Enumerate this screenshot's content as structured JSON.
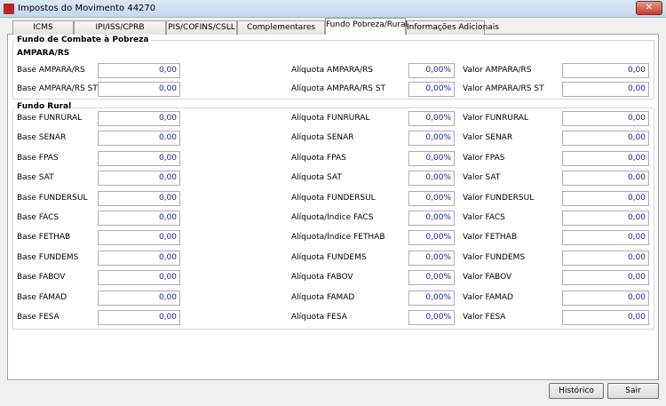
{
  "window": {
    "title": "Impostos do Movimento 44270"
  },
  "tabs": [
    {
      "label": "ICMS",
      "selected": false
    },
    {
      "label": "IPI/ISS/CPRB",
      "selected": false
    },
    {
      "label": "PIS/COFINS/CSLL",
      "selected": false
    },
    {
      "label": "Complementares",
      "selected": false
    },
    {
      "label": "Fundo Pobreza/Rural",
      "selected": true
    },
    {
      "label": "Informações Adicionais",
      "selected": false
    }
  ],
  "groups": [
    {
      "title": "Fundo de Combate à Pobreza",
      "subtitle": "AMPARA/RS",
      "rows": [
        [
          {
            "label": "Base AMPARA/RS",
            "value": "0,00"
          },
          {
            "label": "Alíquota AMPARA/RS",
            "value": "0,00%"
          },
          {
            "label": "Valor AMPARA/RS",
            "value": "0,00"
          }
        ],
        [
          {
            "label": "Base AMPARA/RS ST",
            "value": "0,00"
          },
          {
            "label": "Alíquota AMPARA/RS ST",
            "value": "0,00%"
          },
          {
            "label": "Valor AMPARA/RS ST",
            "value": "0,00"
          }
        ]
      ]
    },
    {
      "title": "Fundo Rural",
      "rows": [
        [
          {
            "label": "Base FUNRURAL",
            "value": "0,00"
          },
          {
            "label": "Alíquota FUNRURAL",
            "value": "0,00%"
          },
          {
            "label": "Valor FUNRURAL",
            "value": "0,00"
          }
        ],
        [
          {
            "label": "Base SENAR",
            "value": "0,00"
          },
          {
            "label": "Alíquota SENAR",
            "value": "0,00%"
          },
          {
            "label": "Valor SENAR",
            "value": "0,00"
          }
        ],
        [
          {
            "label": "Base FPAS",
            "value": "0,00"
          },
          {
            "label": "Alíquota FPAS",
            "value": "0,00%"
          },
          {
            "label": "Valor FPAS",
            "value": "0,00"
          }
        ],
        [
          {
            "label": "Base SAT",
            "value": "0,00"
          },
          {
            "label": "Alíquota SAT",
            "value": "0,00%"
          },
          {
            "label": "Valor SAT",
            "value": "0,00"
          }
        ],
        [
          {
            "label": "Base FUNDERSUL",
            "value": "0,00"
          },
          {
            "label": "Alíquota FUNDERSUL",
            "value": "0,00%"
          },
          {
            "label": "Valor FUNDERSUL",
            "value": "0,00"
          }
        ],
        [
          {
            "label": "Base FACS",
            "value": "0,00"
          },
          {
            "label": "Alíquota/Índice FACS",
            "value": "0,00%"
          },
          {
            "label": "Valor FACS",
            "value": "0,00"
          }
        ],
        [
          {
            "label": "Base FETHAB",
            "value": "0,00"
          },
          {
            "label": "Alíquota/Índice FETHAB",
            "value": "0,00%"
          },
          {
            "label": "Valor FETHAB",
            "value": "0,00"
          }
        ],
        [
          {
            "label": "Base FUNDEMS",
            "value": "0,00"
          },
          {
            "label": "Alíquota FUNDEMS",
            "value": "0,00%"
          },
          {
            "label": "Valor FUNDEMS",
            "value": "0,00"
          }
        ],
        [
          {
            "label": "Base FABOV",
            "value": "0,00"
          },
          {
            "label": "Alíquota FABOV",
            "value": "0,00%"
          },
          {
            "label": "Valor FABOV",
            "value": "0,00"
          }
        ],
        [
          {
            "label": "Base FAMAD",
            "value": "0,00"
          },
          {
            "label": "Alíquota FAMAD",
            "value": "0,00%"
          },
          {
            "label": "Valor FAMAD",
            "value": "0,00"
          }
        ],
        [
          {
            "label": "Base FESA",
            "value": "0,00"
          },
          {
            "label": "Alíquota FESA",
            "value": "0,00%"
          },
          {
            "label": "Valor FESA",
            "value": "0,00"
          }
        ]
      ]
    }
  ],
  "buttons": [
    "Histórico",
    "Sair"
  ]
}
